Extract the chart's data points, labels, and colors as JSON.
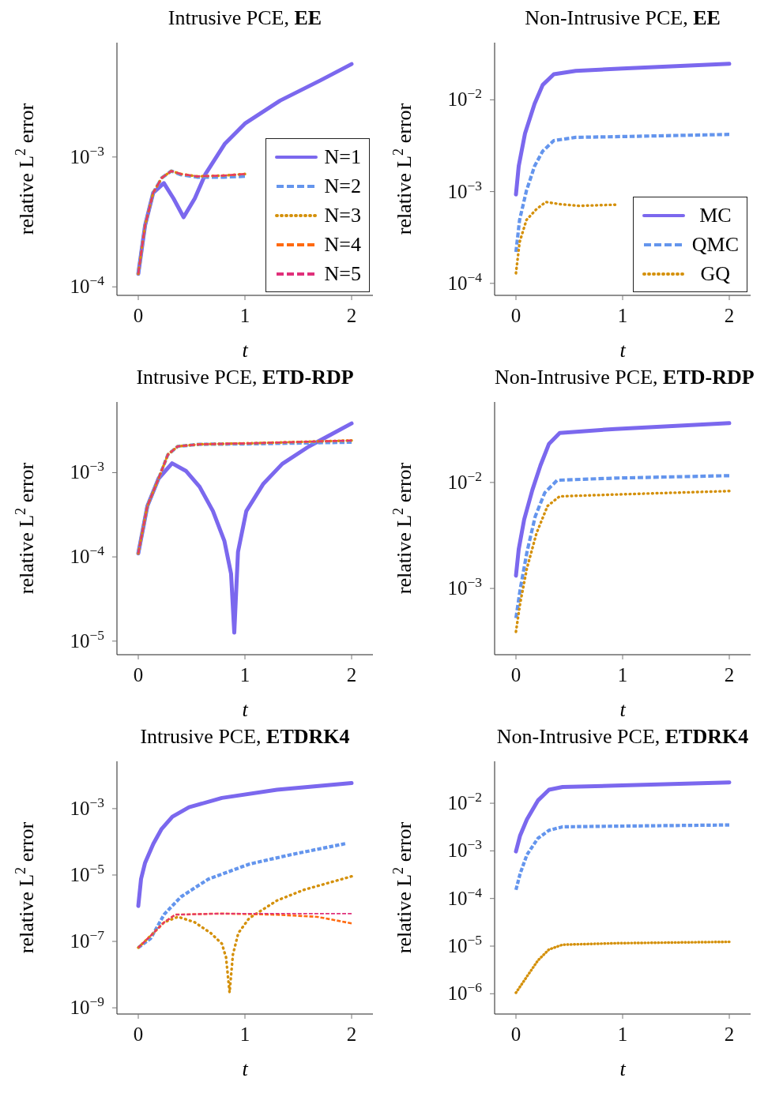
{
  "chart_data": [
    {
      "type": "line",
      "title": "Intrusive PCE, EE",
      "xlabel": "t",
      "ylabel": "relative L$^{2}$ error",
      "xlim": [
        -0.2,
        2.2
      ],
      "xticks": [
        0,
        1,
        2
      ],
      "ylim": [
        8.6e-05,
        0.0076
      ],
      "yticks": [
        {
          "value": 0.0001,
          "label": "10$^{−4}$"
        },
        {
          "value": 0.001,
          "label": "10$^{−3}$"
        }
      ],
      "log": "y",
      "grid": false,
      "legend": "bottom right",
      "series": [
        {
          "name": "N=1",
          "color": "#7b68ee",
          "line_style": "solid",
          "x": [
            0,
            0.064,
            0.14,
            0.24,
            0.33,
            0.425,
            0.53,
            0.63,
            0.81,
            1.0,
            1.33,
            1.71,
            2.0
          ],
          "values": [
            0.000126,
            0.000298,
            0.00053,
            0.00063,
            0.00048,
            0.000344,
            0.00048,
            0.00074,
            0.00126,
            0.00181,
            0.00272,
            0.0039,
            0.0052
          ]
        },
        {
          "name": "N=2",
          "color": "#6495ed",
          "line_style": "dashed",
          "x": [
            0,
            0.064,
            0.14,
            0.22,
            0.31,
            0.4,
            0.55,
            0.8,
            1.0
          ],
          "values": [
            0.000126,
            0.000298,
            0.00053,
            0.00069,
            0.00078,
            0.00073,
            0.0007,
            0.0007,
            0.00071
          ]
        },
        {
          "name": "N=3",
          "color": "#d4900a",
          "line_style": "dotted",
          "x": [
            0,
            0.064,
            0.14,
            0.22,
            0.31,
            0.4,
            0.55,
            0.8,
            1.0
          ],
          "values": [
            0.000126,
            0.000298,
            0.00053,
            0.00069,
            0.00078,
            0.00074,
            0.00071,
            0.00072,
            0.00074
          ]
        },
        {
          "name": "N=4",
          "color": "#ff6a10",
          "line_style": "dashed",
          "x": [
            0,
            0.064,
            0.14,
            0.22,
            0.31,
            0.4,
            0.55,
            0.8,
            1.0
          ],
          "values": [
            0.000126,
            0.000298,
            0.00053,
            0.00069,
            0.00078,
            0.00074,
            0.00071,
            0.00072,
            0.00074
          ]
        },
        {
          "name": "N=5",
          "color": "#e0307a",
          "line_style": "dashed",
          "x": [
            0,
            0.064,
            0.14,
            0.22,
            0.31,
            0.4,
            0.55,
            0.8,
            1.0
          ],
          "values": [
            0.000126,
            0.000298,
            0.00053,
            0.00069,
            0.00078,
            0.00074,
            0.00071,
            0.00072,
            0.00074
          ]
        }
      ]
    },
    {
      "type": "line",
      "title": "Non-Intrusive PCE, EE",
      "xlabel": "t",
      "ylabel": "relative L$^{2}$ error",
      "xlim": [
        -0.2,
        2.2
      ],
      "xticks": [
        0,
        1,
        2
      ],
      "ylim": [
        7.4e-05,
        0.042
      ],
      "yticks": [
        {
          "value": 0.0001,
          "label": "10$^{−4}$"
        },
        {
          "value": 0.001,
          "label": "10$^{−3}$"
        },
        {
          "value": 0.01,
          "label": "10$^{−2}$"
        }
      ],
      "log": "y",
      "grid": false,
      "legend": "bottom right",
      "series": [
        {
          "name": "MC",
          "color": "#7b68ee",
          "line_style": "solid",
          "x": [
            0,
            0.026,
            0.085,
            0.175,
            0.25,
            0.355,
            0.56,
            1.0,
            2.0
          ],
          "values": [
            0.00093,
            0.0019,
            0.0043,
            0.0091,
            0.0145,
            0.019,
            0.0207,
            0.0219,
            0.0247
          ]
        },
        {
          "name": "QMC",
          "color": "#6495ed",
          "line_style": "dashed",
          "x": [
            0,
            0.034,
            0.098,
            0.175,
            0.25,
            0.355,
            0.56,
            1.0,
            2.0
          ],
          "values": [
            0.00022,
            0.00049,
            0.00102,
            0.0019,
            0.00275,
            0.0036,
            0.0039,
            0.00398,
            0.0042
          ]
        },
        {
          "name": "GQ",
          "color": "#d4900a",
          "line_style": "dotted",
          "x": [
            0,
            0.034,
            0.098,
            0.19,
            0.28,
            0.41,
            0.59,
            0.93
          ],
          "values": [
            0.000129,
            0.00028,
            0.00049,
            0.00064,
            0.00077,
            0.00073,
            0.0007,
            0.00072
          ]
        }
      ]
    },
    {
      "type": "line",
      "title": "Intrusive PCE, ETD-RDP",
      "xlabel": "t",
      "ylabel": "relative L$^{2}$ error",
      "xlim": [
        -0.2,
        2.2
      ],
      "xticks": [
        0,
        1,
        2
      ],
      "ylim": [
        6.9e-06,
        0.0069
      ],
      "yticks": [
        {
          "value": 1e-05,
          "label": "10$^{−5}$"
        },
        {
          "value": 0.0001,
          "label": "10$^{−4}$"
        },
        {
          "value": 0.001,
          "label": "10$^{−3}$"
        }
      ],
      "log": "y",
      "grid": false,
      "series": [
        {
          "color": "#7b68ee",
          "line_style": "solid",
          "x": [
            0,
            0.085,
            0.19,
            0.317,
            0.446,
            0.575,
            0.7,
            0.807,
            0.87,
            0.9,
            0.935,
            1.013,
            1.17,
            1.35,
            1.6,
            1.81,
            2.0
          ],
          "values": [
            0.00011,
            0.0004,
            0.00085,
            0.00129,
            0.00105,
            0.00068,
            0.00035,
            0.000155,
            6.3e-05,
            1.26e-05,
            0.000115,
            0.00035,
            0.00073,
            0.00127,
            0.00205,
            0.00285,
            0.00384
          ]
        },
        {
          "color": "#6495ed",
          "line_style": "dashed",
          "x": [
            0,
            0.085,
            0.19,
            0.278,
            0.37,
            0.575,
            1.09,
            2.0
          ],
          "values": [
            0.00011,
            0.0004,
            0.00085,
            0.00164,
            0.00205,
            0.00217,
            0.0022,
            0.0023
          ]
        },
        {
          "color": "#d4900a",
          "line_style": "dotted",
          "x": [
            0,
            0.085,
            0.19,
            0.278,
            0.37,
            0.575,
            1.09,
            2.0
          ],
          "values": [
            0.00011,
            0.0004,
            0.00085,
            0.00164,
            0.00205,
            0.00217,
            0.00224,
            0.00241
          ]
        },
        {
          "color": "#ff6a10",
          "line_style": "dashed",
          "x": [
            0,
            0.085,
            0.19,
            0.278,
            0.37,
            0.575,
            1.09,
            2.0
          ],
          "values": [
            0.00011,
            0.0004,
            0.00085,
            0.00164,
            0.00205,
            0.00217,
            0.00224,
            0.00241
          ]
        },
        {
          "color": "#e0307a",
          "line_style": "dashed",
          "x": [
            0,
            0.085,
            0.19,
            0.278,
            0.37,
            0.575,
            1.09,
            2.0
          ],
          "values": [
            0.00011,
            0.0004,
            0.00085,
            0.00164,
            0.00205,
            0.00217,
            0.00224,
            0.00241
          ]
        }
      ]
    },
    {
      "type": "line",
      "title": "Non-Intrusive PCE, ETD-RDP",
      "xlabel": "t",
      "ylabel": "relative L$^{2}$ error",
      "xlim": [
        -0.2,
        2.2
      ],
      "xticks": [
        0,
        1,
        2
      ],
      "ylim": [
        0.000237,
        0.0575
      ],
      "yticks": [
        {
          "value": 0.001,
          "label": "10$^{−3}$"
        },
        {
          "value": 0.01,
          "label": "10$^{−2}$"
        }
      ],
      "log": "y",
      "grid": false,
      "series": [
        {
          "color": "#7b68ee",
          "line_style": "solid",
          "x": [
            0,
            0.026,
            0.077,
            0.154,
            0.23,
            0.31,
            0.41,
            0.93,
            2.0
          ],
          "values": [
            0.00132,
            0.00234,
            0.00447,
            0.0085,
            0.0145,
            0.0232,
            0.0293,
            0.032,
            0.0363
          ]
        },
        {
          "color": "#6495ed",
          "line_style": "dashed",
          "x": [
            0,
            0.039,
            0.103,
            0.18,
            0.27,
            0.386,
            0.93,
            2.0
          ],
          "values": [
            0.000525,
            0.00097,
            0.0022,
            0.00476,
            0.008,
            0.0105,
            0.011,
            0.0116
          ]
        },
        {
          "color": "#d4900a",
          "line_style": "dotted",
          "x": [
            0,
            0.039,
            0.103,
            0.193,
            0.296,
            0.41,
            0.93,
            2.0
          ],
          "values": [
            0.00039,
            0.00072,
            0.00155,
            0.00333,
            0.006,
            0.0074,
            0.0077,
            0.0083
          ]
        }
      ]
    },
    {
      "type": "line",
      "title": "Intrusive PCE, ETDRK4",
      "xlabel": "t",
      "ylabel": "relative L$^{2}$ error",
      "xlim": [
        -0.2,
        2.2
      ],
      "xticks": [
        0,
        1,
        2
      ],
      "ylim": [
        6.5e-10,
        0.0266
      ],
      "yticks": [
        {
          "value": 1e-09,
          "label": "10$^{−9}$"
        },
        {
          "value": 1e-07,
          "label": "10$^{−7}$"
        },
        {
          "value": 1e-05,
          "label": "10$^{−5}$"
        },
        {
          "value": 0.001,
          "label": "10$^{−3}$"
        }
      ],
      "log": "y",
      "grid": false,
      "series": [
        {
          "color": "#7b68ee",
          "line_style": "solid",
          "x": [
            0,
            0.026,
            0.064,
            0.141,
            0.219,
            0.32,
            0.476,
            0.784,
            1.3,
            2.0
          ],
          "values": [
            1.17e-06,
            7.6e-06,
            2.35e-05,
            8.7e-05,
            0.000245,
            0.00057,
            0.0011,
            0.0021,
            0.0037,
            0.0059
          ]
        },
        {
          "color": "#6495ed",
          "line_style": "dashed",
          "x": [
            0,
            0.116,
            0.244,
            0.4,
            0.656,
            1.04,
            1.43,
            1.94
          ],
          "values": [
            6.5e-08,
            1.23e-07,
            6.6e-07,
            2.2e-06,
            7.5e-06,
            2.13e-05,
            4.1e-05,
            8.8e-05
          ]
        },
        {
          "color": "#d4900a",
          "line_style": "dotted",
          "x": [
            0,
            0.116,
            0.244,
            0.373,
            0.527,
            0.68,
            0.784,
            0.823,
            0.856,
            0.887,
            0.938,
            1.04,
            1.3,
            1.555,
            2.0
          ],
          "values": [
            6.5e-08,
            1.48e-07,
            3.8e-07,
            5.5e-07,
            3.8e-07,
            1.78e-07,
            8.5e-08,
            3.3e-08,
            2.9e-09,
            4e-08,
            1.78e-07,
            5e-07,
            1.7e-06,
            3.6e-06,
            9.1e-06
          ]
        },
        {
          "color": "#ff6a10",
          "line_style": "dashed",
          "x": [
            0,
            0.116,
            0.244,
            0.347,
            0.784,
            1.3,
            1.68,
            2.0
          ],
          "values": [
            6.5e-08,
            1.48e-07,
            3.8e-07,
            6.4e-07,
            6.9e-07,
            6.4e-07,
            5.5e-07,
            3.5e-07
          ]
        },
        {
          "color": "#e0307a",
          "line_style": "dashed",
          "x": [
            0,
            0.116,
            0.244,
            0.347,
            0.784,
            1.3,
            1.68,
            2.0
          ],
          "values": [
            6.5e-08,
            1.48e-07,
            3.8e-07,
            6.4e-07,
            6.9e-07,
            6.9e-07,
            6.9e-07,
            6.9e-07
          ]
        }
      ]
    },
    {
      "type": "line",
      "title": "Non-Intrusive PCE, ETDRK4",
      "xlabel": "t",
      "ylabel": "relative L$^{2}$ error",
      "xlim": [
        -0.2,
        2.2
      ],
      "xticks": [
        0,
        1,
        2
      ],
      "ylim": [
        3.75e-07,
        0.0759
      ],
      "yticks": [
        {
          "value": 1e-06,
          "label": "10$^{−6}$"
        },
        {
          "value": 1e-05,
          "label": "10$^{−5}$"
        },
        {
          "value": 0.0001,
          "label": "10$^{−4}$"
        },
        {
          "value": 0.001,
          "label": "10$^{−3}$"
        },
        {
          "value": 0.01,
          "label": "10$^{−2}$"
        }
      ],
      "log": "y",
      "grid": false,
      "series": [
        {
          "color": "#7b68ee",
          "line_style": "solid",
          "x": [
            0,
            0.039,
            0.103,
            0.206,
            0.31,
            0.437,
            0.93,
            2.0
          ],
          "values": [
            0.00097,
            0.0021,
            0.0046,
            0.0114,
            0.0192,
            0.0219,
            0.0234,
            0.0274
          ]
        },
        {
          "color": "#6495ed",
          "line_style": "dashed",
          "x": [
            0,
            0.039,
            0.103,
            0.206,
            0.31,
            0.437,
            0.93,
            2.0
          ],
          "values": [
            0.000152,
            0.00033,
            0.00083,
            0.00183,
            0.0027,
            0.0032,
            0.0033,
            0.0035
          ]
        },
        {
          "color": "#d4900a",
          "line_style": "dotted",
          "x": [
            0,
            0.103,
            0.206,
            0.31,
            0.437,
            0.93,
            2.0
          ],
          "values": [
            1.05e-06,
            2.3e-06,
            5e-06,
            8.5e-06,
            1.07e-05,
            1.15e-05,
            1.23e-05
          ]
        }
      ]
    }
  ]
}
